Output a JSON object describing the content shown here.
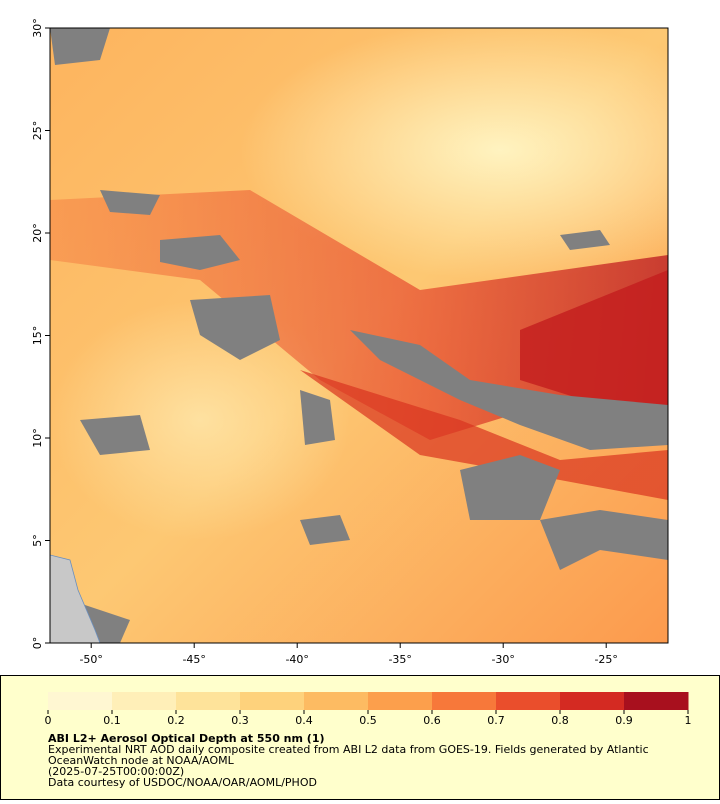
{
  "map": {
    "xlim": [
      -52,
      -22
    ],
    "ylim": [
      0,
      30
    ],
    "xticks": [
      {
        "value": -50,
        "label": "-50°"
      },
      {
        "value": -45,
        "label": "-45°"
      },
      {
        "value": -40,
        "label": "-40°"
      },
      {
        "value": -35,
        "label": "-35°"
      },
      {
        "value": -30,
        "label": "-30°"
      },
      {
        "value": -25,
        "label": "-25°"
      }
    ],
    "yticks": [
      {
        "value": 0,
        "label": "0°"
      },
      {
        "value": 5,
        "label": "5°"
      },
      {
        "value": 10,
        "label": "10°"
      },
      {
        "value": 15,
        "label": "15°"
      },
      {
        "value": 20,
        "label": "20°"
      },
      {
        "value": 25,
        "label": "25°"
      },
      {
        "value": 30,
        "label": "30°"
      }
    ]
  },
  "colorbar": {
    "lim": [
      0,
      1
    ],
    "ticks": [
      0,
      0.1,
      0.2,
      0.3,
      0.4,
      0.5,
      0.6,
      0.7,
      0.8,
      0.9,
      1
    ],
    "colors": [
      "#fff7d2",
      "#ffefb8",
      "#fee39a",
      "#fed27c",
      "#fdbb62",
      "#fc9f4c",
      "#f7783a",
      "#ea4e2c",
      "#d42a22",
      "#a8101e"
    ]
  },
  "caption": {
    "title": "ABI L2+ Aerosol Optical Depth at 550 nm (1)",
    "lines": [
      "Experimental NRT AOD daily composite created from ABI L2 data from GOES-19. Fields generated by Atlantic",
      "OceanWatch node at NOAA/AOML",
      "(2025-07-25T00:00:00Z)",
      "Data courtesy of USDOC/NOAA/OAR/AOML/PHOD"
    ]
  }
}
